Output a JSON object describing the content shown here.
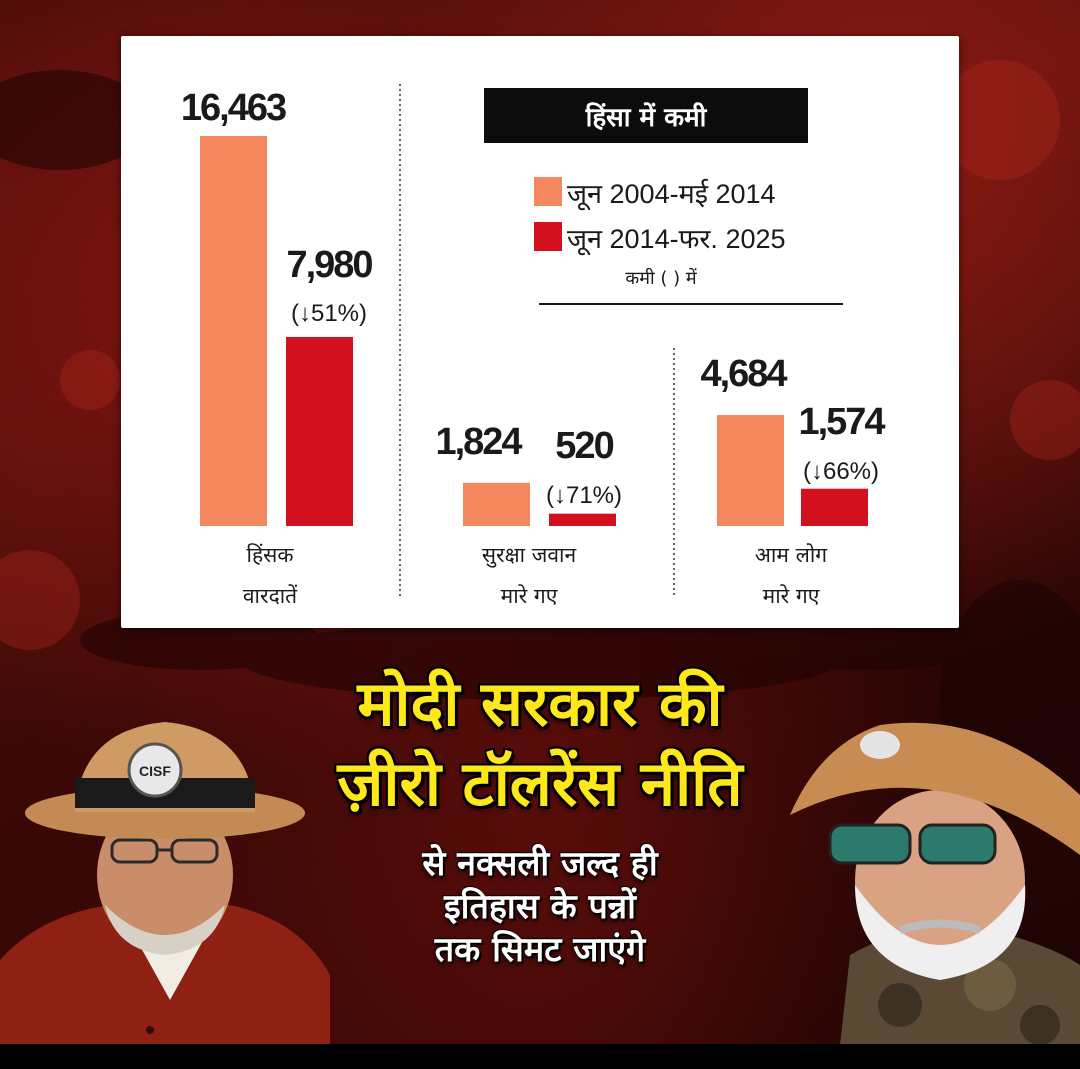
{
  "chart_data": {
    "type": "bar",
    "title": "हिंसा में कमी",
    "legend": {
      "entries": [
        {
          "label": "जून 2004-मई 2014",
          "color": "#f5875f"
        },
        {
          "label": "जून 2014-फर. 2025",
          "color": "#d3101e"
        }
      ],
      "note": "कमी ( ) में"
    },
    "categories": [
      {
        "label_line1": "हिंसक",
        "label_line2": "वारदातें"
      },
      {
        "label_line1": "सुरक्षा जवान",
        "label_line2": "मारे गए"
      },
      {
        "label_line1": "आम लोग",
        "label_line2": "मारे गए"
      }
    ],
    "series": [
      {
        "name": "जून 2004-मई 2014",
        "values": [
          16463,
          1824,
          4684
        ],
        "labels": [
          "16,463",
          "1,824",
          "4,684"
        ]
      },
      {
        "name": "जून 2014-फर. 2025",
        "values": [
          7980,
          520,
          1574
        ],
        "labels": [
          "7,980",
          "520",
          "1,574"
        ],
        "reduction_labels": [
          "(↓51%)",
          "(↓71%)",
          "(↓66%)"
        ]
      }
    ],
    "ylim": [
      0,
      16463
    ]
  },
  "headline": {
    "line1": "मोदी सरकार की",
    "line2": "ज़ीरो टॉलरेंस नीति"
  },
  "subtext": {
    "line1": "से नक्सली जल्द ही",
    "line2": "इतिहास के पन्नों",
    "line3": "तक सिमट जाएंगे"
  },
  "badges": {
    "left_hat": "CISF"
  },
  "colors": {
    "series1": "#f5875f",
    "series2": "#d3101e",
    "headline": "#ffe81a"
  }
}
